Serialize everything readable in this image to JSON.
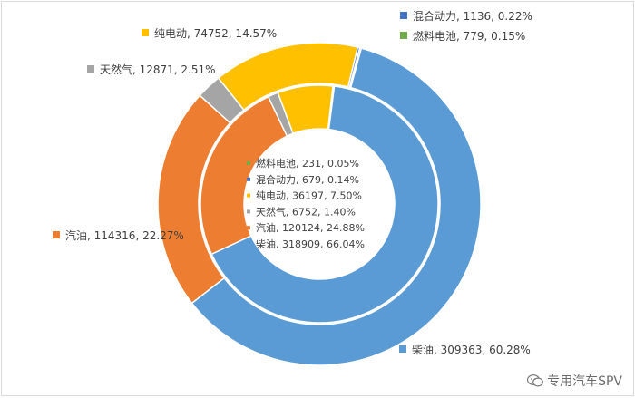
{
  "chart_data": {
    "type": "doughnut",
    "outer_ring": [
      {
        "name": "柴油",
        "value": 309363,
        "label": "柴油, 309363, 60.28%",
        "color": "#5b9bd5"
      },
      {
        "name": "汽油",
        "value": 114316,
        "label": "汽油, 114316, 22.27%",
        "color": "#ed7d31"
      },
      {
        "name": "天然气",
        "value": 12871,
        "label": "天然气, 12871, 2.51%",
        "color": "#a5a5a5"
      },
      {
        "name": "纯电动",
        "value": 74752,
        "label": "纯电动, 74752, 14.57%",
        "color": "#ffc000"
      },
      {
        "name": "混合动力",
        "value": 1136,
        "label": "混合动力, 1136, 0.22%",
        "color": "#4472c4"
      },
      {
        "name": "燃料电池",
        "value": 779,
        "label": "燃料电池, 779, 0.15%",
        "color": "#70ad47"
      }
    ],
    "inner_ring": [
      {
        "name": "柴油",
        "value": 318909,
        "label": "柴油, 318909, 66.04%",
        "color": "#5b9bd5"
      },
      {
        "name": "汽油",
        "value": 120124,
        "label": "汽油, 120124, 24.88%",
        "color": "#ed7d31"
      },
      {
        "name": "天然气",
        "value": 6752,
        "label": "天然气, 6752, 1.40%",
        "color": "#a5a5a5"
      },
      {
        "name": "纯电动",
        "value": 36197,
        "label": "纯电动, 36197, 7.50%",
        "color": "#ffc000"
      },
      {
        "name": "混合动力",
        "value": 679,
        "label": "混合动力, 679, 0.14%",
        "color": "#4472c4"
      },
      {
        "name": "燃料电池",
        "value": 231,
        "label": "燃料电池, 231, 0.05%",
        "color": "#70ad47"
      }
    ]
  },
  "watermark": {
    "text": "专用汽车SPV"
  }
}
